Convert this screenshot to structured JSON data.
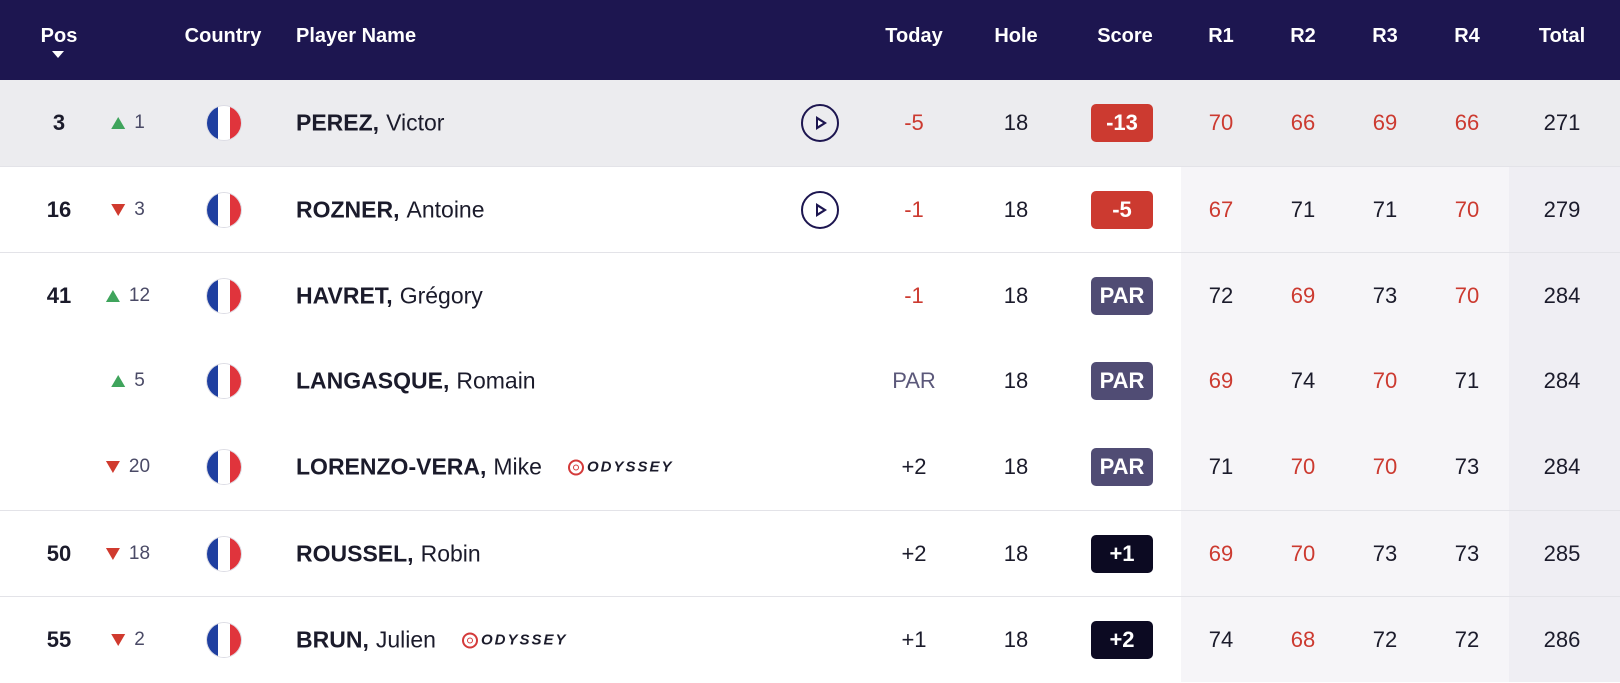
{
  "header": {
    "pos": "Pos",
    "country": "Country",
    "player": "Player Name",
    "today": "Today",
    "hole": "Hole",
    "score": "Score",
    "r1": "R1",
    "r2": "R2",
    "r3": "R3",
    "r4": "R4",
    "total": "Total",
    "sort_icon": "caret-down-icon"
  },
  "colors": {
    "header_bg": "#1d1650",
    "under_par": "#cc3a30",
    "par_badge": "#504c74",
    "over_par_badge": "#0c0a22",
    "move_up": "#3fa45c",
    "move_down": "#d03a2e",
    "highlight_row": "#ececef"
  },
  "rows": [
    {
      "pos": "3",
      "move_dir": "up",
      "move": "1",
      "country_icon": "france-flag-icon",
      "last": "PEREZ,",
      "first": "Victor",
      "sponsor": "",
      "video": true,
      "today": "-5",
      "today_color": "red",
      "hole": "18",
      "score": "-13",
      "score_kind": "under",
      "r1": "70",
      "r1_color": "red",
      "r2": "66",
      "r2_color": "red",
      "r3": "69",
      "r3_color": "red",
      "r4": "66",
      "r4_color": "red",
      "total": "271"
    },
    {
      "pos": "16",
      "move_dir": "down",
      "move": "3",
      "country_icon": "france-flag-icon",
      "last": "ROZNER,",
      "first": "Antoine",
      "sponsor": "",
      "video": true,
      "today": "-1",
      "today_color": "red",
      "hole": "18",
      "score": "-5",
      "score_kind": "under",
      "r1": "67",
      "r1_color": "red",
      "r2": "71",
      "r2_color": "dark",
      "r3": "71",
      "r3_color": "dark",
      "r4": "70",
      "r4_color": "red",
      "total": "279"
    },
    {
      "pos": "41",
      "move_dir": "up",
      "move": "12",
      "country_icon": "france-flag-icon",
      "last": "HAVRET,",
      "first": "Grégory",
      "sponsor": "",
      "video": false,
      "today": "-1",
      "today_color": "red",
      "hole": "18",
      "score": "PAR",
      "score_kind": "par",
      "r1": "72",
      "r1_color": "dark",
      "r2": "69",
      "r2_color": "red",
      "r3": "73",
      "r3_color": "dark",
      "r4": "70",
      "r4_color": "red",
      "total": "284"
    },
    {
      "pos": "",
      "move_dir": "up",
      "move": "5",
      "country_icon": "france-flag-icon",
      "last": "LANGASQUE,",
      "first": "Romain",
      "sponsor": "",
      "video": false,
      "today": "PAR",
      "today_color": "muted",
      "hole": "18",
      "score": "PAR",
      "score_kind": "par",
      "r1": "69",
      "r1_color": "red",
      "r2": "74",
      "r2_color": "dark",
      "r3": "70",
      "r3_color": "red",
      "r4": "71",
      "r4_color": "dark",
      "total": "284"
    },
    {
      "pos": "",
      "move_dir": "down",
      "move": "20",
      "country_icon": "france-flag-icon",
      "last": "LORENZO-VERA,",
      "first": "Mike",
      "sponsor": "ODYSSEY",
      "video": false,
      "today": "+2",
      "today_color": "dark",
      "hole": "18",
      "score": "PAR",
      "score_kind": "par",
      "r1": "71",
      "r1_color": "dark",
      "r2": "70",
      "r2_color": "red",
      "r3": "70",
      "r3_color": "red",
      "r4": "73",
      "r4_color": "dark",
      "total": "284"
    },
    {
      "pos": "50",
      "move_dir": "down",
      "move": "18",
      "country_icon": "france-flag-icon",
      "last": "ROUSSEL,",
      "first": "Robin",
      "sponsor": "",
      "video": false,
      "today": "+2",
      "today_color": "dark",
      "hole": "18",
      "score": "+1",
      "score_kind": "over",
      "r1": "69",
      "r1_color": "red",
      "r2": "70",
      "r2_color": "red",
      "r3": "73",
      "r3_color": "dark",
      "r4": "73",
      "r4_color": "dark",
      "total": "285"
    },
    {
      "pos": "55",
      "move_dir": "down",
      "move": "2",
      "country_icon": "france-flag-icon",
      "last": "BRUN,",
      "first": "Julien",
      "sponsor": "ODYSSEY",
      "video": false,
      "today": "+1",
      "today_color": "dark",
      "hole": "18",
      "score": "+2",
      "score_kind": "over",
      "r1": "74",
      "r1_color": "dark",
      "r2": "68",
      "r2_color": "red",
      "r3": "72",
      "r3_color": "dark",
      "r4": "72",
      "r4_color": "dark",
      "total": "286"
    }
  ]
}
